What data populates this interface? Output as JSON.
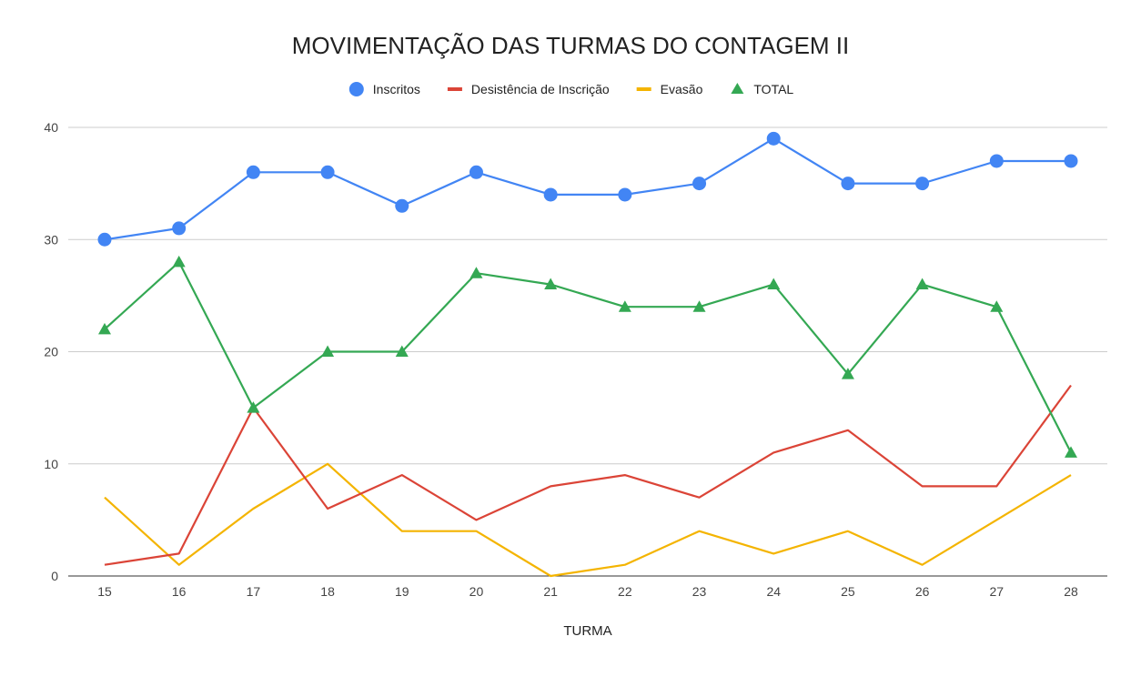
{
  "chart_data": {
    "type": "line",
    "title": "MOVIMENTAÇÃO DAS TURMAS DO CONTAGEM II",
    "xlabel": "TURMA",
    "ylabel": "",
    "categories": [
      "15",
      "16",
      "17",
      "18",
      "19",
      "20",
      "21",
      "22",
      "23",
      "24",
      "25",
      "26",
      "27",
      "28"
    ],
    "ylim": [
      0,
      40
    ],
    "yticks": [
      0,
      10,
      20,
      30,
      40
    ],
    "grid": true,
    "legend_position": "top",
    "series": [
      {
        "name": "Inscritos",
        "color": "#4285f4",
        "marker": "circle",
        "values": [
          30,
          31,
          36,
          36,
          33,
          36,
          34,
          34,
          35,
          39,
          35,
          35,
          37,
          37
        ]
      },
      {
        "name": "Desistência de Inscrição",
        "color": "#db4437",
        "marker": "none",
        "values": [
          1,
          2,
          15,
          6,
          9,
          5,
          8,
          9,
          7,
          11,
          13,
          8,
          8,
          17
        ]
      },
      {
        "name": "Evasão",
        "color": "#f4b400",
        "marker": "none",
        "values": [
          7,
          1,
          6,
          10,
          4,
          4,
          0,
          1,
          4,
          2,
          4,
          1,
          5,
          9
        ]
      },
      {
        "name": "TOTAL",
        "color": "#34a853",
        "marker": "triangle",
        "values": [
          22,
          28,
          15,
          20,
          20,
          27,
          26,
          24,
          24,
          26,
          18,
          26,
          24,
          11
        ]
      }
    ]
  }
}
